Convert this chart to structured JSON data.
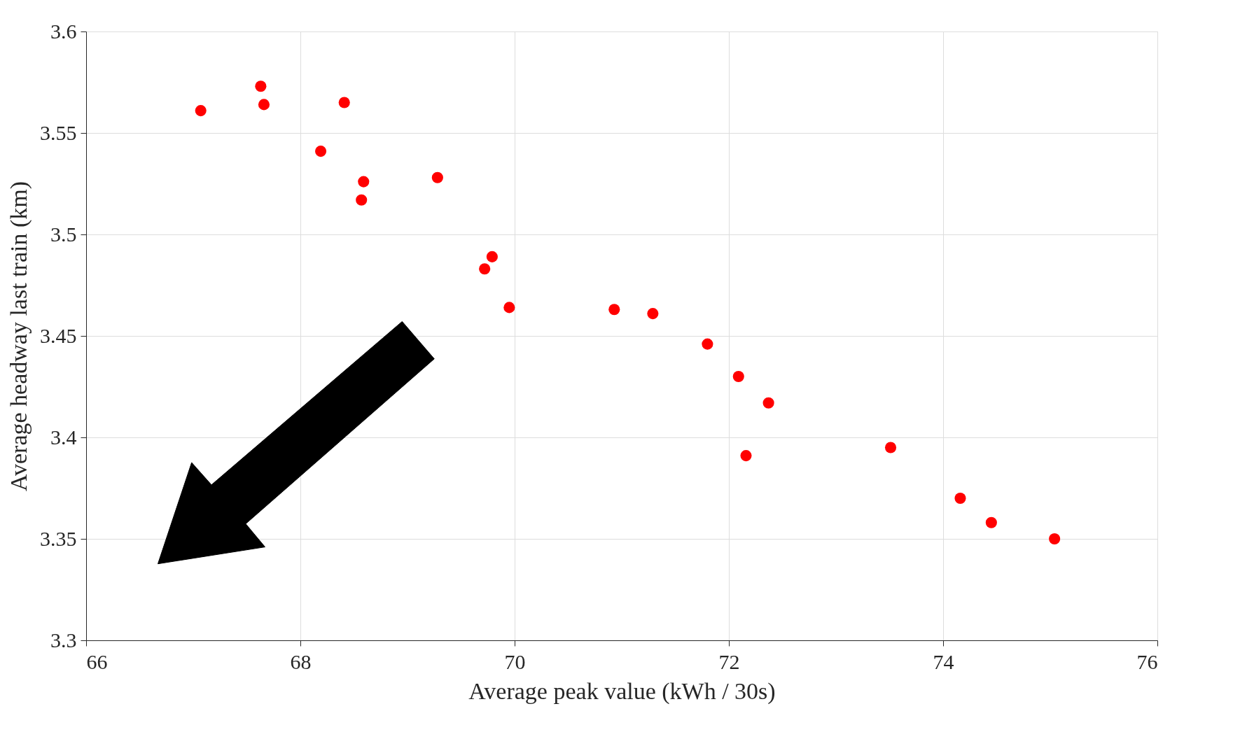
{
  "chart_data": {
    "type": "scatter",
    "xlabel": "Average peak value (kWh / 30s)",
    "ylabel": "Average headway last train (km)",
    "x": [
      67.07,
      67.63,
      67.66,
      68.41,
      68.19,
      68.59,
      68.57,
      69.28,
      69.79,
      69.72,
      69.95,
      70.93,
      71.29,
      71.8,
      72.09,
      72.37,
      72.16,
      73.51,
      74.16,
      74.45,
      75.04
    ],
    "series": [
      {
        "color": "#ff0000",
        "values": [
          3.561,
          3.573,
          3.564,
          3.565,
          3.541,
          3.526,
          3.517,
          3.528,
          3.489,
          3.483,
          3.464,
          3.463,
          3.461,
          3.446,
          3.43,
          3.417,
          3.391,
          3.395,
          3.37,
          3.358,
          3.35
        ]
      }
    ],
    "xlim": [
      66,
      76
    ],
    "xticks": [
      66,
      68,
      70,
      72,
      74,
      76
    ],
    "ylim": [
      3.3,
      3.6
    ],
    "yticks": [
      3.3,
      3.35,
      3.4,
      3.45,
      3.5,
      3.55,
      3.6
    ],
    "grid": true,
    "marker": "circle"
  }
}
